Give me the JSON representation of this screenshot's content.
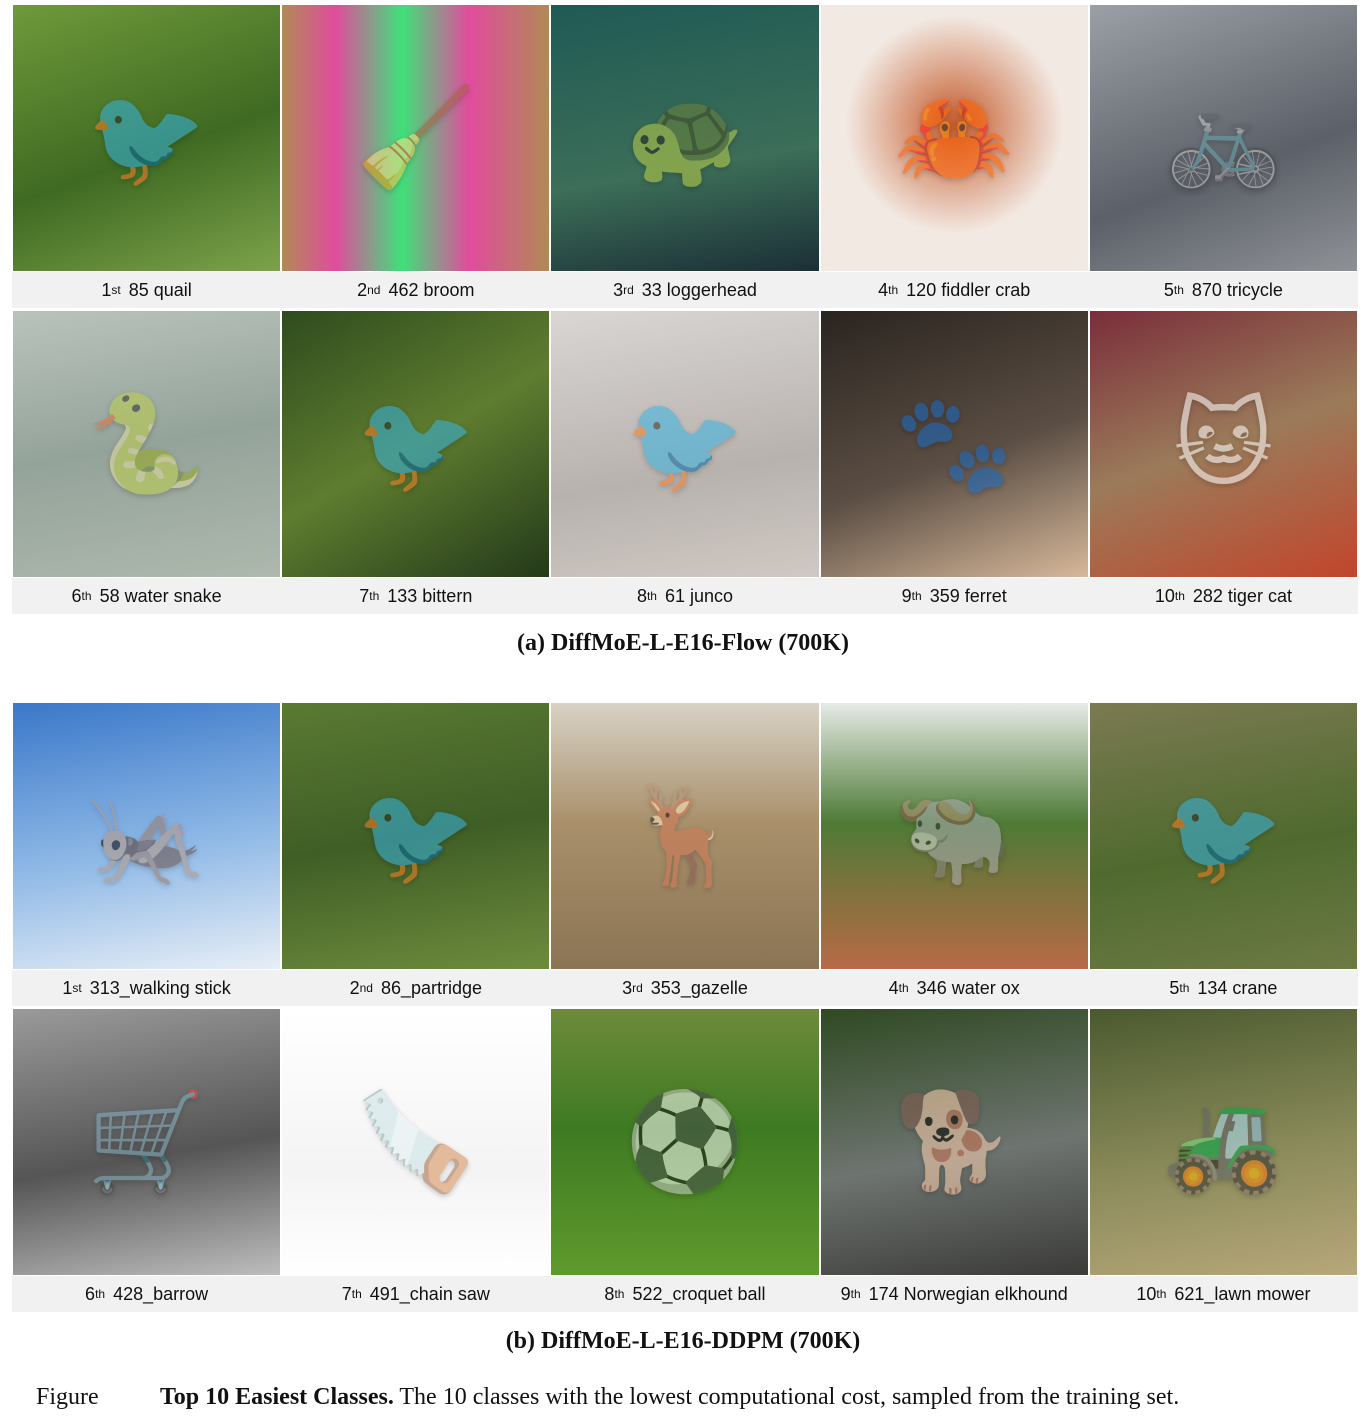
{
  "panel_a": {
    "caption": "(a) DiffMoE-L-E16-Flow (700K)",
    "items": [
      {
        "rank": "1",
        "suffix": "st",
        "label": "85 quail",
        "icon": "bird-icon",
        "glyph": "🐦",
        "bg": "linear-gradient(160deg,#6f9a3a,#3f6a22 55%,#7ca24a)"
      },
      {
        "rank": "2",
        "suffix": "nd",
        "label": "462 broom",
        "icon": "broom-icon",
        "glyph": "🧹",
        "bg": "linear-gradient(90deg,#b08a55,#e14c9c 20%,#3fe07a 45%,#e14c9c 70%,#b08a55)"
      },
      {
        "rank": "3",
        "suffix": "rd",
        "label": "33 loggerhead",
        "icon": "turtle-icon",
        "glyph": "🐢",
        "bg": "linear-gradient(170deg,#1f5a55,#3c6e58 60%,#1b2f36)"
      },
      {
        "rank": "4",
        "suffix": "th",
        "label": "120 fiddler crab",
        "icon": "crab-icon",
        "glyph": "🦀",
        "bg": "radial-gradient(circle at 50% 45%,#c55a2a,#f2e9e2 55%)"
      },
      {
        "rank": "5",
        "suffix": "th",
        "label": "870 tricycle",
        "icon": "tricycle-icon",
        "glyph": "🚲",
        "bg": "linear-gradient(160deg,#9aa0a6,#5c6068 60%,#8e9297)"
      },
      {
        "rank": "6",
        "suffix": "th",
        "label": "58 water snake",
        "icon": "snake-icon",
        "glyph": "🐍",
        "bg": "linear-gradient(170deg,#b9c3bc,#94a39a 50%,#aeb8ad)"
      },
      {
        "rank": "7",
        "suffix": "th",
        "label": "133 bittern",
        "icon": "heron-icon",
        "glyph": "🐦",
        "bg": "linear-gradient(150deg,#2e4b1e,#5f7d2f 50%,#23391a)"
      },
      {
        "rank": "8",
        "suffix": "th",
        "label": "61 junco",
        "icon": "bird-icon",
        "glyph": "🐦",
        "bg": "linear-gradient(170deg,#d9d6d4,#b8b2ae 60%,#cfc8c3)"
      },
      {
        "rank": "9",
        "suffix": "th",
        "label": "359 ferret",
        "icon": "ferret-icon",
        "glyph": "🐾",
        "bg": "linear-gradient(160deg,#2a241f,#5b4e44 55%,#d7b89a)"
      },
      {
        "rank": "10",
        "suffix": "th",
        "label": "282 tiger cat",
        "icon": "cat-icon",
        "glyph": "🐱",
        "bg": "linear-gradient(160deg,#7a2e3a,#9b7b5a 50%,#c2452b)"
      }
    ]
  },
  "panel_b": {
    "caption": "(b) DiffMoE-L-E16-DDPM (700K)",
    "items": [
      {
        "rank": "1",
        "suffix": "st",
        "label": "313_walking stick",
        "icon": "insect-icon",
        "glyph": "🦗",
        "bg": "linear-gradient(170deg,#3a78c9,#8fb9e6 55%,#e7eef6)"
      },
      {
        "rank": "2",
        "suffix": "nd",
        "label": "86_partridge",
        "icon": "bird-icon",
        "glyph": "🐦",
        "bg": "linear-gradient(170deg,#5a7a33,#3f5e26 50%,#6e8c3c)"
      },
      {
        "rank": "3",
        "suffix": "rd",
        "label": "353_gazelle",
        "icon": "gazelle-icon",
        "glyph": "🦌",
        "bg": "linear-gradient(180deg,#d8d2c6,#a9906b 45%,#8b7454)"
      },
      {
        "rank": "4",
        "suffix": "th",
        "label": "346 water ox",
        "icon": "ox-icon",
        "glyph": "🐃",
        "bg": "linear-gradient(180deg,#e6ebe6,#4e7a36 45%,#b86a46)"
      },
      {
        "rank": "5",
        "suffix": "th",
        "label": "134 crane",
        "icon": "crane-icon",
        "glyph": "🐦",
        "bg": "linear-gradient(170deg,#7b7a52,#4f6a2e 55%,#6c7a43)"
      },
      {
        "rank": "6",
        "suffix": "th",
        "label": "428_barrow",
        "icon": "wheelbarrow-icon",
        "glyph": "🛒",
        "bg": "linear-gradient(170deg,#9a9a9a,#555 55%,#bdbdbd)"
      },
      {
        "rank": "7",
        "suffix": "th",
        "label": "491_chain saw",
        "icon": "chainsaw-icon",
        "glyph": "🪚",
        "bg": "linear-gradient(180deg,#ffffff,#f4f4f4 60%,#ffffff)"
      },
      {
        "rank": "8",
        "suffix": "th",
        "label": "522_croquet ball",
        "icon": "ball-icon",
        "glyph": "⚽",
        "bg": "linear-gradient(180deg,#6d8b3a,#3e7a22 45%,#5f9a2c)"
      },
      {
        "rank": "9",
        "suffix": "th",
        "label": "174 Norwegian elkhound",
        "icon": "dog-icon",
        "glyph": "🐕",
        "bg": "linear-gradient(170deg,#2f4a22,#6e7470 55%,#3b3b38)"
      },
      {
        "rank": "10",
        "suffix": "th",
        "label": "621_lawn mower",
        "icon": "mower-icon",
        "glyph": "🚜",
        "bg": "linear-gradient(170deg,#4a5a2e,#8a8a5a 55%,#b7a77a)"
      }
    ]
  },
  "figure": {
    "label": "Figure",
    "title": "Top 10 Easiest Classes.",
    "text": " The 10 classes with the lowest computational cost, sampled from the training set."
  }
}
